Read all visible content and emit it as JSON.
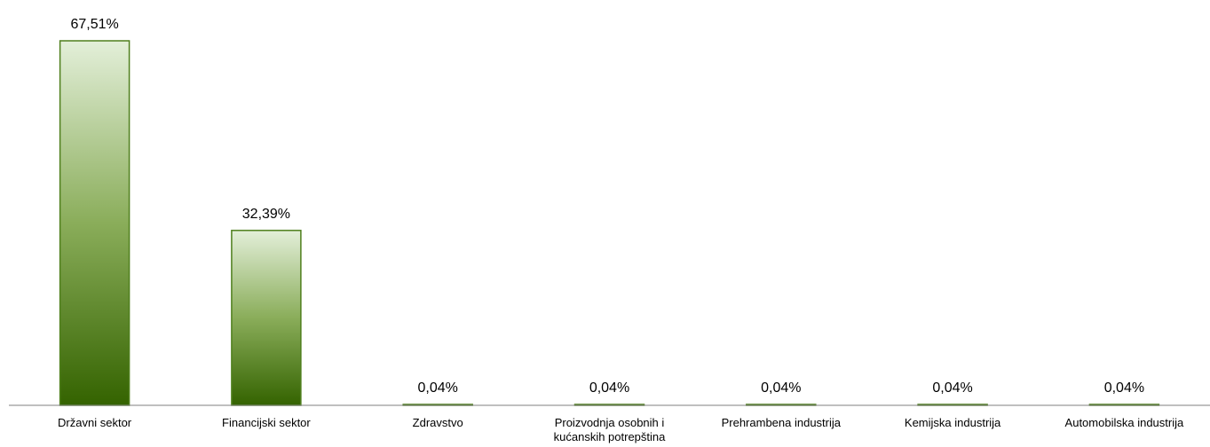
{
  "colors": {
    "bar_top": "#e3efd9",
    "bar_bottom": "#346300",
    "bar_border": "#4f7f1d",
    "axis": "#7f7f7f",
    "text": "#000000"
  },
  "chart_data": {
    "type": "bar",
    "title": "",
    "xlabel": "",
    "ylabel": "",
    "ylim": [
      0,
      67.51
    ],
    "grid": false,
    "legend": "none",
    "categories": [
      "Državni sektor",
      "Financijski sektor",
      "Zdravstvo",
      "Proizvodnja osobnih i kućanskih potrepština",
      "Prehrambena industrija",
      "Kemijska industrija",
      "Automobilska industrija"
    ],
    "category_lines": [
      [
        "Državni sektor"
      ],
      [
        "Financijski sektor"
      ],
      [
        "Zdravstvo"
      ],
      [
        "Proizvodnja osobnih i",
        "kućanskih potrepština"
      ],
      [
        "Prehrambena industrija"
      ],
      [
        "Kemijska industrija"
      ],
      [
        "Automobilska industrija"
      ]
    ],
    "values": [
      67.51,
      32.39,
      0.04,
      0.04,
      0.04,
      0.04,
      0.04
    ],
    "data_labels": [
      "67,51%",
      "32,39%",
      "0,04%",
      "0,04%",
      "0,04%",
      "0,04%",
      "0,04%"
    ]
  }
}
